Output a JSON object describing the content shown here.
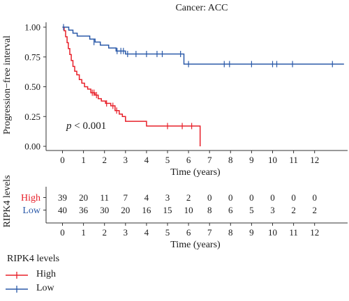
{
  "chart_data": {
    "type": "line",
    "title": "Cancer: ACC",
    "xlabel": "Time (years)",
    "ylabel": "Progression−free interval",
    "xlim": [
      0,
      12.8
    ],
    "ylim": [
      0,
      1.02
    ],
    "x_ticks": [
      "0",
      "1",
      "2",
      "3",
      "4",
      "5",
      "6",
      "7",
      "8",
      "9",
      "10",
      "11",
      "12"
    ],
    "y_ticks": [
      "0.00",
      "0.25",
      "0.50",
      "0.75",
      "1.00"
    ],
    "annotation": {
      "italic": "p",
      "rest": " < 0.001"
    },
    "series": [
      {
        "name": "High",
        "color": "#e8202a",
        "steps": [
          [
            0,
            1.0
          ],
          [
            0.08,
            0.97
          ],
          [
            0.15,
            0.92
          ],
          [
            0.22,
            0.87
          ],
          [
            0.28,
            0.82
          ],
          [
            0.35,
            0.77
          ],
          [
            0.42,
            0.72
          ],
          [
            0.5,
            0.67
          ],
          [
            0.58,
            0.63
          ],
          [
            0.68,
            0.6
          ],
          [
            0.8,
            0.56
          ],
          [
            0.92,
            0.53
          ],
          [
            1.05,
            0.5
          ],
          [
            1.2,
            0.48
          ],
          [
            1.35,
            0.45
          ],
          [
            1.55,
            0.43
          ],
          [
            1.7,
            0.4
          ],
          [
            1.85,
            0.38
          ],
          [
            2.05,
            0.36
          ],
          [
            2.3,
            0.34
          ],
          [
            2.5,
            0.3
          ],
          [
            2.7,
            0.27
          ],
          [
            2.85,
            0.25
          ],
          [
            3.0,
            0.21
          ],
          [
            4.0,
            0.17
          ],
          [
            6.55,
            0.0
          ]
        ],
        "end": 6.55,
        "censor": [
          [
            1.42,
            0.45
          ],
          [
            1.5,
            0.45
          ],
          [
            1.62,
            0.43
          ],
          [
            2.1,
            0.36
          ],
          [
            2.4,
            0.34
          ],
          [
            2.58,
            0.3
          ],
          [
            5.0,
            0.17
          ],
          [
            5.7,
            0.17
          ],
          [
            6.15,
            0.17
          ]
        ]
      },
      {
        "name": "Low",
        "color": "#2b5aa9",
        "steps": [
          [
            0,
            1.0
          ],
          [
            0.3,
            0.975
          ],
          [
            0.5,
            0.95
          ],
          [
            0.7,
            0.925
          ],
          [
            1.3,
            0.9
          ],
          [
            1.55,
            0.875
          ],
          [
            1.8,
            0.85
          ],
          [
            2.2,
            0.825
          ],
          [
            2.55,
            0.8
          ],
          [
            3.0,
            0.775
          ],
          [
            5.78,
            0.69
          ]
        ],
        "end": 13.4,
        "censor": [
          [
            0.05,
            1.0
          ],
          [
            1.5,
            0.875
          ],
          [
            2.6,
            0.8
          ],
          [
            2.78,
            0.8
          ],
          [
            2.9,
            0.8
          ],
          [
            3.1,
            0.775
          ],
          [
            3.5,
            0.775
          ],
          [
            4.0,
            0.775
          ],
          [
            4.5,
            0.775
          ],
          [
            4.75,
            0.775
          ],
          [
            5.62,
            0.775
          ],
          [
            6.0,
            0.69
          ],
          [
            7.7,
            0.69
          ],
          [
            7.95,
            0.69
          ],
          [
            9.0,
            0.69
          ],
          [
            10.0,
            0.69
          ],
          [
            10.2,
            0.69
          ],
          [
            10.95,
            0.69
          ],
          [
            12.85,
            0.69
          ]
        ]
      }
    ],
    "risk_table": {
      "title": "RIPK4 levels",
      "xlabel": "Time (years)",
      "rows": [
        {
          "name": "High",
          "color": "#e8202a",
          "counts": [
            "39",
            "20",
            "11",
            "7",
            "4",
            "3",
            "2",
            "0",
            "0",
            "0",
            "0",
            "0",
            "0"
          ]
        },
        {
          "name": "Low",
          "color": "#2b5aa9",
          "counts": [
            "40",
            "36",
            "30",
            "20",
            "16",
            "15",
            "10",
            "8",
            "6",
            "5",
            "3",
            "2",
            "2"
          ]
        }
      ]
    },
    "legend": {
      "title": "RIPK4 levels",
      "placement": "bottom-left",
      "items": [
        {
          "label": "High",
          "color": "#e8202a"
        },
        {
          "label": "Low",
          "color": "#2b5aa9"
        }
      ]
    }
  }
}
